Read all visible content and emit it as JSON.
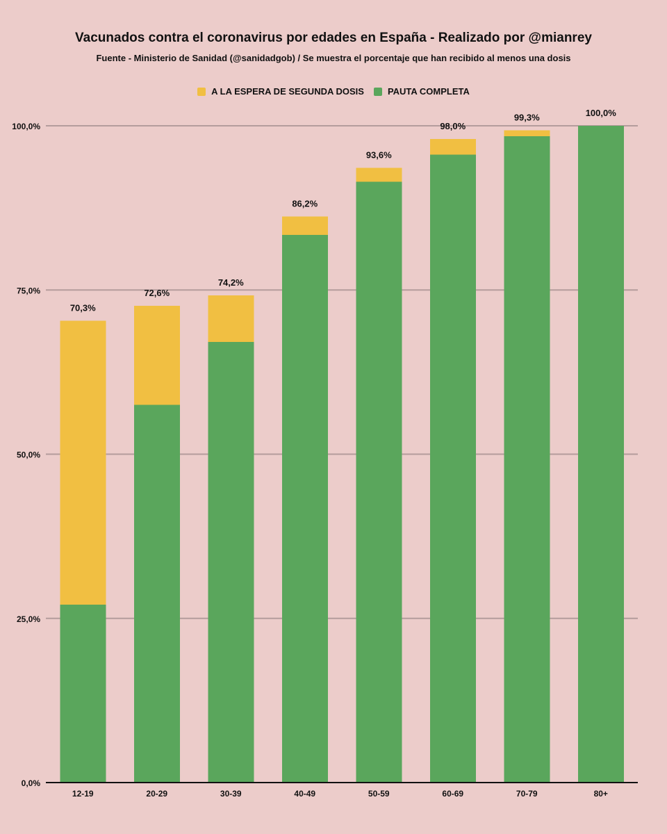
{
  "chart_data": {
    "type": "bar",
    "stacked": true,
    "title": "Vacunados contra el coronavirus por edades en España - Realizado por @mianrey",
    "subtitle": "Fuente - Ministerio de Sanidad (@sanidadgob) / Se muestra el porcentaje que han recibido al menos una dosis",
    "categories": [
      "12-19",
      "20-29",
      "30-39",
      "40-49",
      "50-59",
      "60-69",
      "70-79",
      "80+"
    ],
    "series": [
      {
        "name": "PAUTA COMPLETA",
        "color": "#5aa65c",
        "values": [
          27.1,
          57.5,
          67.1,
          83.4,
          91.5,
          95.6,
          98.4,
          100.0
        ]
      },
      {
        "name": "A LA ESPERA DE SEGUNDA DOSIS",
        "color": "#f1bf42",
        "values": [
          43.2,
          15.1,
          7.1,
          2.8,
          2.1,
          2.4,
          0.9,
          0.0
        ]
      }
    ],
    "totals_labels": [
      "70,3%",
      "72,6%",
      "74,2%",
      "86,2%",
      "93,6%",
      "98,0%",
      "99,3%",
      "100,0%"
    ],
    "ylim": [
      0,
      100
    ],
    "yticks": [
      0,
      25,
      50,
      75,
      100
    ],
    "ytick_labels": [
      "0,0%",
      "25,0%",
      "50,0%",
      "75,0%",
      "100,0%"
    ],
    "grid": true,
    "legend_position": "top-center"
  },
  "legend": [
    {
      "label": "A LA ESPERA DE SEGUNDA DOSIS",
      "color": "#f1bf42"
    },
    {
      "label": "PAUTA COMPLETA",
      "color": "#5aa65c"
    }
  ]
}
